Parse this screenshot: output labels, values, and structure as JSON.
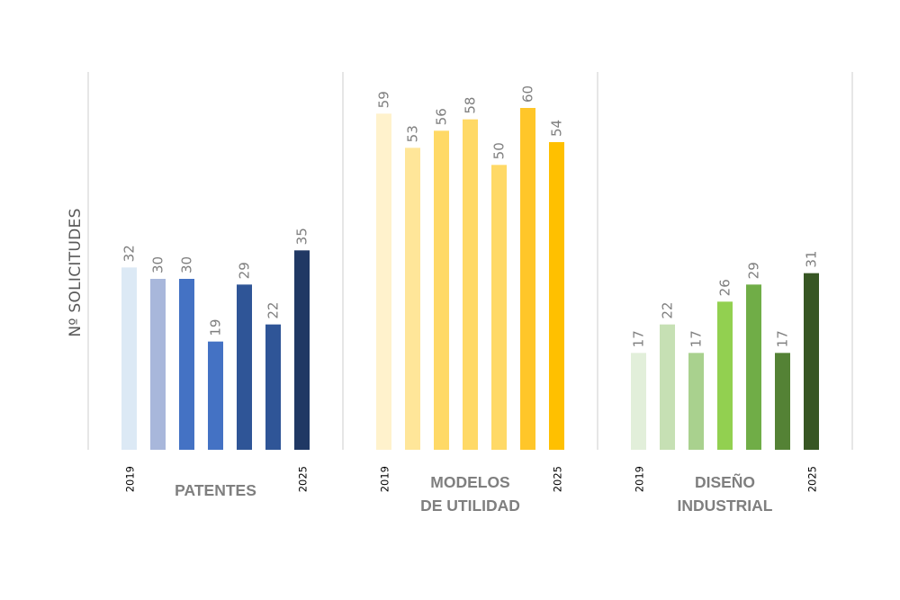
{
  "chart_data": {
    "type": "bar",
    "ylabel": "Nº SOLICITUDES",
    "ylim": [
      0,
      60
    ],
    "grid": false,
    "groups": [
      {
        "title_lines": [
          "PATENTES"
        ],
        "first_year": "2019",
        "last_year": "2025",
        "values": [
          32,
          30,
          30,
          19,
          29,
          22,
          35
        ],
        "colors": [
          "#dce9f5",
          "#a8b7db",
          "#4472c4",
          "#4472c4",
          "#2f5597",
          "#2f5597",
          "#203864"
        ]
      },
      {
        "title_lines": [
          "MODELOS",
          "DE UTILIDAD"
        ],
        "first_year": "2019",
        "last_year": "2025",
        "values": [
          59,
          53,
          56,
          58,
          50,
          60,
          54
        ],
        "colors": [
          "#fff2cc",
          "#ffe699",
          "#ffd966",
          "#ffd966",
          "#ffd966",
          "#ffc629",
          "#ffc000"
        ]
      },
      {
        "title_lines": [
          "DISEÑO",
          "INDUSTRIAL"
        ],
        "first_year": "2019",
        "last_year": "2025",
        "values": [
          17,
          22,
          17,
          26,
          29,
          17,
          31
        ],
        "colors": [
          "#e2efda",
          "#c6e0b4",
          "#a9d18e",
          "#92d050",
          "#70ad47",
          "#548235",
          "#375623"
        ]
      }
    ]
  }
}
